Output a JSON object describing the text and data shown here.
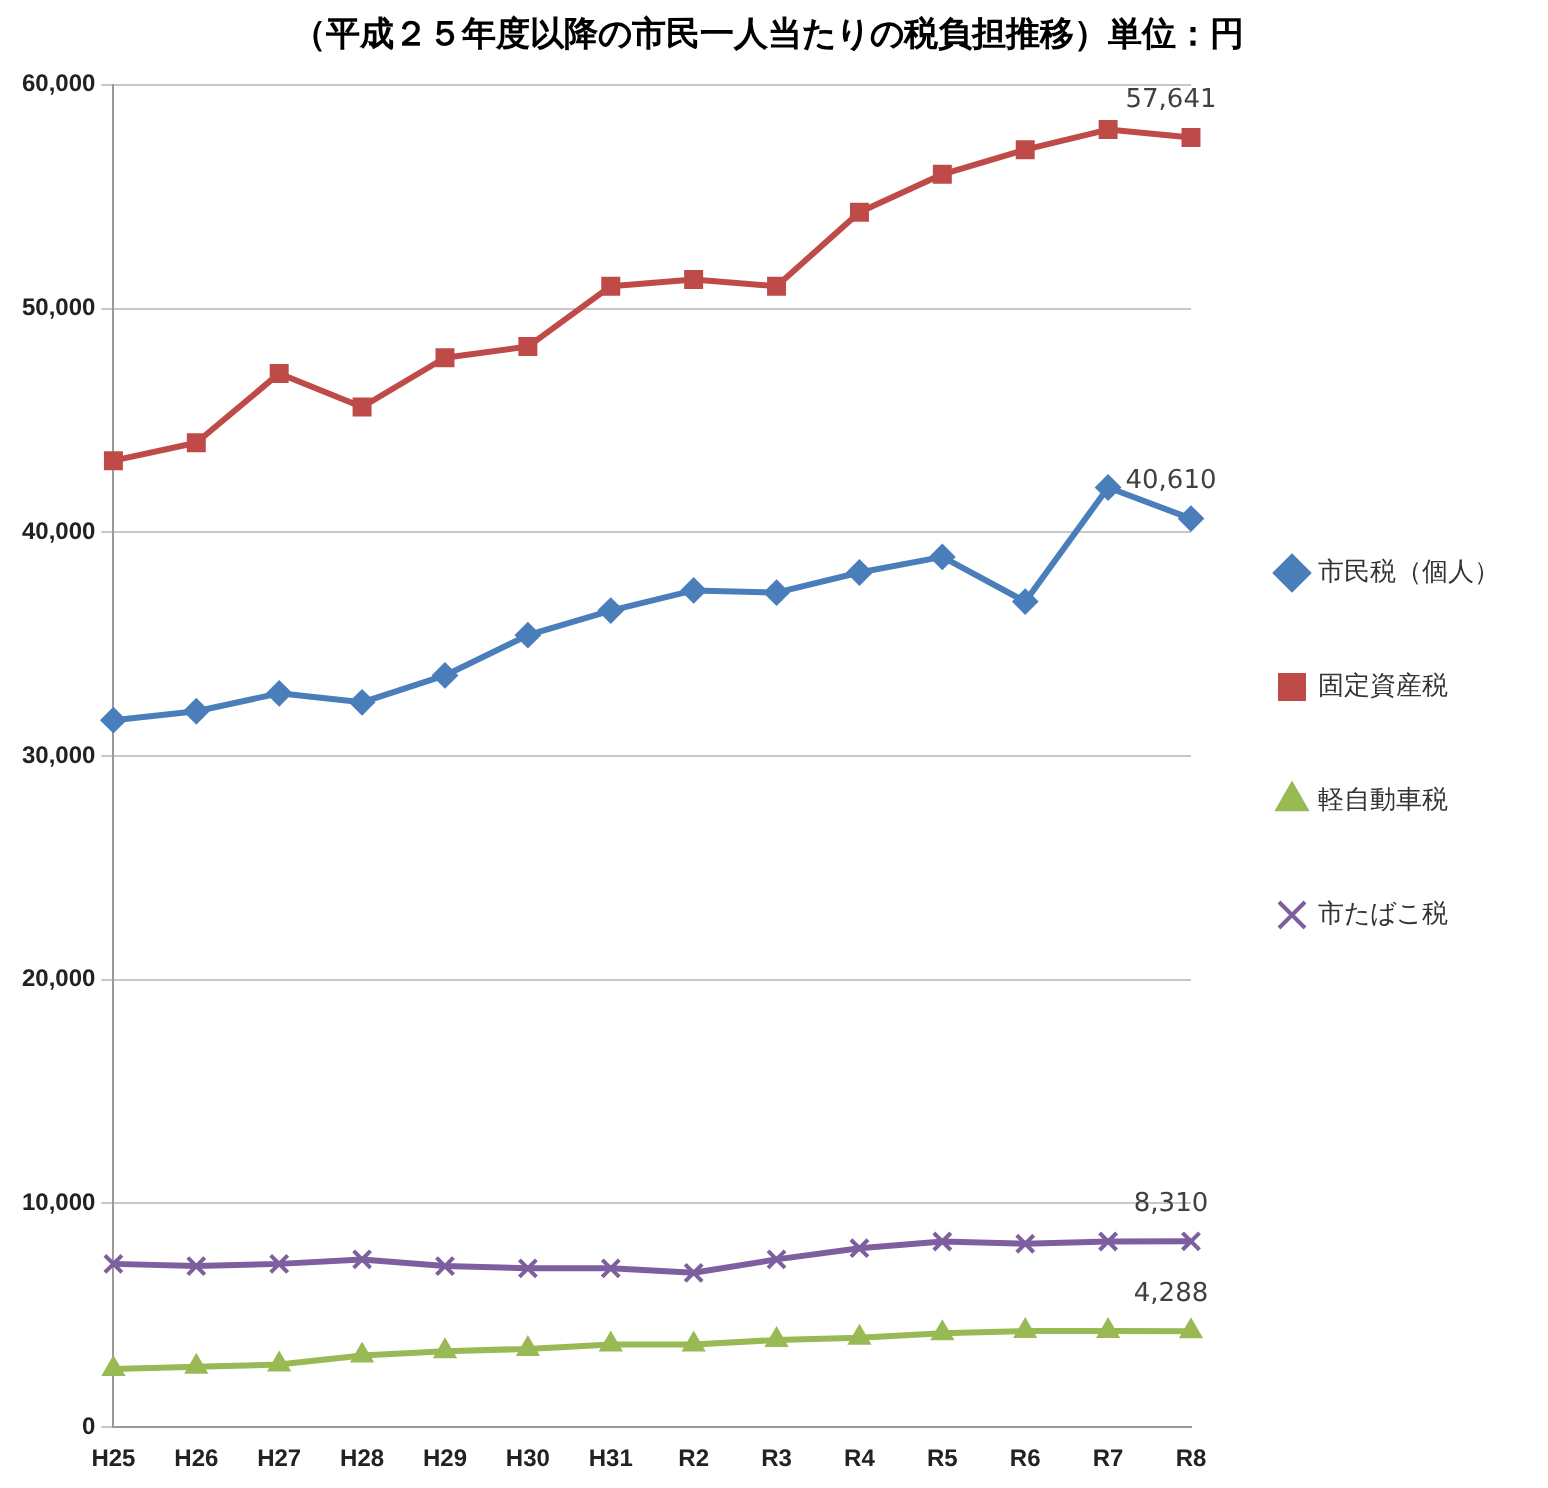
{
  "chart_data": {
    "type": "line",
    "title": "（平成２５年度以降の市民一人当たりの税負担推移）単位：円",
    "categories": [
      "H25",
      "H26",
      "H27",
      "H28",
      "H29",
      "H30",
      "H31",
      "R2",
      "R3",
      "R4",
      "R5",
      "R6",
      "R7",
      "R8"
    ],
    "series": [
      {
        "name": "市民税（個人）",
        "color": "#4a7ebb",
        "marker": "diamond",
        "values": [
          31600,
          32000,
          32800,
          32400,
          33600,
          35400,
          36500,
          37400,
          37300,
          38200,
          38900,
          36900,
          42000,
          40610
        ],
        "value_labels": [
          null,
          null,
          null,
          null,
          null,
          null,
          null,
          null,
          null,
          null,
          null,
          null,
          null,
          "40,610"
        ]
      },
      {
        "name": "固定資産税",
        "color": "#be4b48",
        "marker": "square",
        "values": [
          43200,
          44000,
          47100,
          45600,
          47800,
          48300,
          51000,
          51300,
          51000,
          54300,
          56000,
          57100,
          58000,
          57641
        ],
        "value_labels": [
          null,
          null,
          null,
          null,
          null,
          null,
          null,
          null,
          null,
          null,
          null,
          null,
          null,
          "57,641"
        ]
      },
      {
        "name": "軽自動車税",
        "color": "#98b954",
        "marker": "triangle",
        "values": [
          2600,
          2700,
          2800,
          3200,
          3400,
          3500,
          3700,
          3700,
          3900,
          4000,
          4200,
          4300,
          4300,
          4288
        ],
        "value_labels": [
          null,
          null,
          null,
          null,
          null,
          null,
          null,
          null,
          null,
          null,
          null,
          null,
          null,
          "4,288"
        ]
      },
      {
        "name": "市たばこ税",
        "color": "#7d5fa0",
        "marker": "cross",
        "values": [
          7300,
          7200,
          7300,
          7500,
          7200,
          7100,
          7100,
          6900,
          7500,
          8000,
          8300,
          8200,
          8300,
          8310
        ],
        "value_labels": [
          null,
          null,
          null,
          null,
          null,
          null,
          null,
          null,
          null,
          null,
          null,
          null,
          null,
          "8,310"
        ]
      }
    ],
    "ylim": [
      0,
      60000
    ],
    "yticks": [
      {
        "value": 0,
        "label": "0"
      },
      {
        "value": 10000,
        "label": "10,000"
      },
      {
        "value": 20000,
        "label": "20,000"
      },
      {
        "value": 30000,
        "label": "30,000"
      },
      {
        "value": 40000,
        "label": "40,000"
      },
      {
        "value": 50000,
        "label": "50,000"
      },
      {
        "value": 60000,
        "label": "60,000"
      }
    ],
    "grid": "y",
    "legend": "right"
  }
}
